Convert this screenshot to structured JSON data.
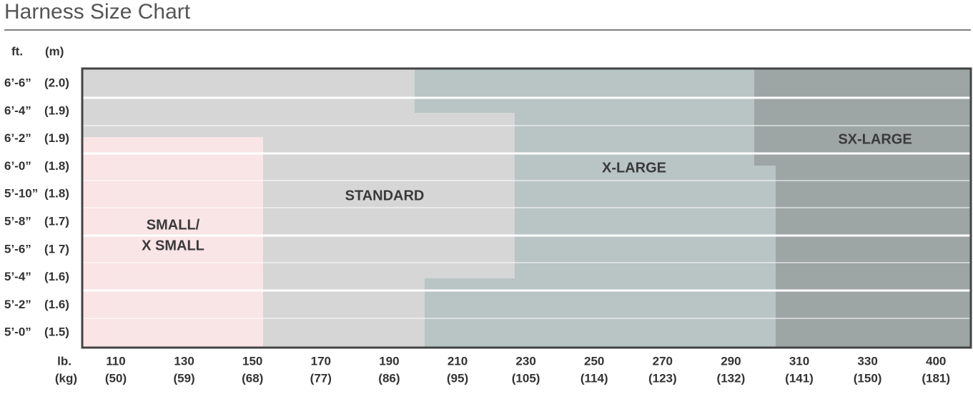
{
  "title": "Harness Size Chart",
  "height_header": {
    "ft": "ft.",
    "m": "(m)"
  },
  "heights": [
    {
      "ft": "6’-6”",
      "m": "(2.0)"
    },
    {
      "ft": "6’-4”",
      "m": "(1.9)"
    },
    {
      "ft": "6’-2”",
      "m": "(1.9)"
    },
    {
      "ft": "6’-0”",
      "m": "(1.8)"
    },
    {
      "ft": "5’-10”",
      "m": "(1.8)"
    },
    {
      "ft": "5’-8”",
      "m": "(1.7)"
    },
    {
      "ft": "5’-6”",
      "m": "(1 7)"
    },
    {
      "ft": "5’-4”",
      "m": "(1.6)"
    },
    {
      "ft": "5’-2”",
      "m": "(1.6)"
    },
    {
      "ft": "5’-0”",
      "m": "(1.5)"
    }
  ],
  "weight_header": {
    "lb": "lb.",
    "kg": "(kg)"
  },
  "weights": [
    {
      "lb": "110",
      "kg": "(50)"
    },
    {
      "lb": "130",
      "kg": "(59)"
    },
    {
      "lb": "150",
      "kg": "(68)"
    },
    {
      "lb": "170",
      "kg": "(77)"
    },
    {
      "lb": "190",
      "kg": "(86)"
    },
    {
      "lb": "210",
      "kg": "(95)"
    },
    {
      "lb": "230",
      "kg": "(105)"
    },
    {
      "lb": "250",
      "kg": "(114)"
    },
    {
      "lb": "270",
      "kg": "(123)"
    },
    {
      "lb": "290",
      "kg": "(132)"
    },
    {
      "lb": "310",
      "kg": "(141)"
    },
    {
      "lb": "330",
      "kg": "(150)"
    },
    {
      "lb": "400",
      "kg": "(181)"
    }
  ],
  "zones": [
    {
      "lines": [
        "SMALL/",
        "X SMALL"
      ]
    },
    {
      "lines": [
        "STANDARD"
      ]
    },
    {
      "lines": [
        "X-LARGE"
      ]
    },
    {
      "lines": [
        "SX-LARGE"
      ]
    }
  ]
}
